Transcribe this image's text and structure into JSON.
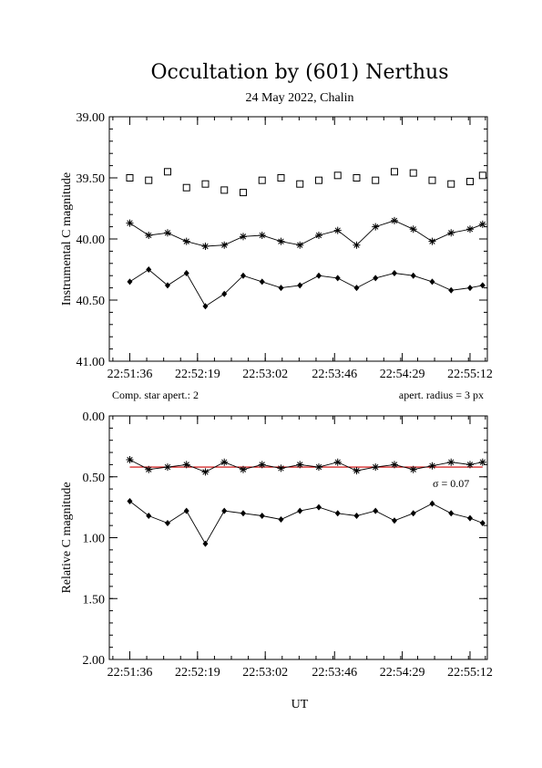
{
  "title": "Occultation by (601) Nerthus",
  "subtitle": "24 May 2022, Chalin",
  "xlabel": "UT",
  "colors": {
    "axes": "#000000",
    "markers": "#000000",
    "fit": "#cc0000"
  },
  "chart_data": [
    {
      "type": "scatter",
      "ylabel": "Instrumental C magnitude",
      "ylim": [
        41.0,
        39.0
      ],
      "yticks": [
        "39.00",
        "39.50",
        "40.00",
        "40.50",
        "41.00"
      ],
      "ytick_values": [
        39.0,
        39.5,
        40.0,
        40.5,
        41.0
      ],
      "xticks": [
        "22:51:36",
        "22:52:19",
        "22:53:02",
        "22:53:46",
        "22:54:29",
        "22:55:12"
      ],
      "xrange": [
        "22:51:23",
        "22:55:23"
      ],
      "grid": false,
      "annotations_below": {
        "left": "Comp. star apert.: 2",
        "right": "apert. radius = 3 px"
      },
      "series": [
        {
          "marker": "open-square",
          "connected": false,
          "x": [
            "22:51:36",
            "22:51:48",
            "22:52:00",
            "22:52:12",
            "22:52:24",
            "22:52:36",
            "22:52:48",
            "22:53:00",
            "22:53:12",
            "22:53:24",
            "22:53:36",
            "22:53:48",
            "22:54:00",
            "22:54:12",
            "22:54:24",
            "22:54:36",
            "22:54:48",
            "22:55:00",
            "22:55:12",
            "22:55:20"
          ],
          "y": [
            39.5,
            39.52,
            39.45,
            39.58,
            39.55,
            39.6,
            39.62,
            39.52,
            39.5,
            39.55,
            39.52,
            39.48,
            39.5,
            39.52,
            39.45,
            39.46,
            39.52,
            39.55,
            39.53,
            39.48
          ]
        },
        {
          "marker": "asterisk",
          "connected": true,
          "x": [
            "22:51:36",
            "22:51:48",
            "22:52:00",
            "22:52:12",
            "22:52:24",
            "22:52:36",
            "22:52:48",
            "22:53:00",
            "22:53:12",
            "22:53:24",
            "22:53:36",
            "22:53:48",
            "22:54:00",
            "22:54:12",
            "22:54:24",
            "22:54:36",
            "22:54:48",
            "22:55:00",
            "22:55:12",
            "22:55:20"
          ],
          "y": [
            39.87,
            39.97,
            39.95,
            40.02,
            40.06,
            40.05,
            39.98,
            39.97,
            40.02,
            40.05,
            39.97,
            39.93,
            40.05,
            39.9,
            39.85,
            39.92,
            40.02,
            39.95,
            39.92,
            39.88
          ]
        },
        {
          "marker": "filled-diamond",
          "connected": true,
          "x": [
            "22:51:36",
            "22:51:48",
            "22:52:00",
            "22:52:12",
            "22:52:24",
            "22:52:36",
            "22:52:48",
            "22:53:00",
            "22:53:12",
            "22:53:24",
            "22:53:36",
            "22:53:48",
            "22:54:00",
            "22:54:12",
            "22:54:24",
            "22:54:36",
            "22:54:48",
            "22:55:00",
            "22:55:12",
            "22:55:20"
          ],
          "y": [
            40.35,
            40.25,
            40.38,
            40.28,
            40.55,
            40.45,
            40.3,
            40.35,
            40.4,
            40.38,
            40.3,
            40.32,
            40.4,
            40.32,
            40.28,
            40.3,
            40.35,
            40.42,
            40.4,
            40.38
          ]
        }
      ]
    },
    {
      "type": "scatter",
      "ylabel": "Relative C magnitude",
      "ylim": [
        2.0,
        0.0
      ],
      "yticks": [
        "0.00",
        "0.50",
        "1.00",
        "1.50",
        "2.00"
      ],
      "ytick_values": [
        0.0,
        0.5,
        1.0,
        1.5,
        2.0
      ],
      "xticks": [
        "22:51:36",
        "22:52:19",
        "22:53:02",
        "22:53:46",
        "22:54:29",
        "22:55:12"
      ],
      "xrange": [
        "22:51:23",
        "22:55:23"
      ],
      "grid": false,
      "annotations": [
        "σ = 0.07"
      ],
      "fit_level": 0.42,
      "series": [
        {
          "marker": "asterisk",
          "connected": true,
          "x": [
            "22:51:36",
            "22:51:48",
            "22:52:00",
            "22:52:12",
            "22:52:24",
            "22:52:36",
            "22:52:48",
            "22:53:00",
            "22:53:12",
            "22:53:24",
            "22:53:36",
            "22:53:48",
            "22:54:00",
            "22:54:12",
            "22:54:24",
            "22:54:36",
            "22:54:48",
            "22:55:00",
            "22:55:12",
            "22:55:20"
          ],
          "y": [
            0.36,
            0.44,
            0.42,
            0.4,
            0.46,
            0.38,
            0.44,
            0.4,
            0.43,
            0.4,
            0.42,
            0.38,
            0.45,
            0.42,
            0.4,
            0.44,
            0.41,
            0.38,
            0.4,
            0.38
          ]
        },
        {
          "marker": "filled-diamond",
          "connected": true,
          "x": [
            "22:51:36",
            "22:51:48",
            "22:52:00",
            "22:52:12",
            "22:52:24",
            "22:52:36",
            "22:52:48",
            "22:53:00",
            "22:53:12",
            "22:53:24",
            "22:53:36",
            "22:53:48",
            "22:54:00",
            "22:54:12",
            "22:54:24",
            "22:54:36",
            "22:54:48",
            "22:55:00",
            "22:55:12",
            "22:55:20"
          ],
          "y": [
            0.7,
            0.82,
            0.88,
            0.78,
            1.05,
            0.78,
            0.8,
            0.82,
            0.85,
            0.78,
            0.75,
            0.8,
            0.82,
            0.78,
            0.86,
            0.8,
            0.72,
            0.8,
            0.84,
            0.88
          ]
        }
      ]
    }
  ]
}
